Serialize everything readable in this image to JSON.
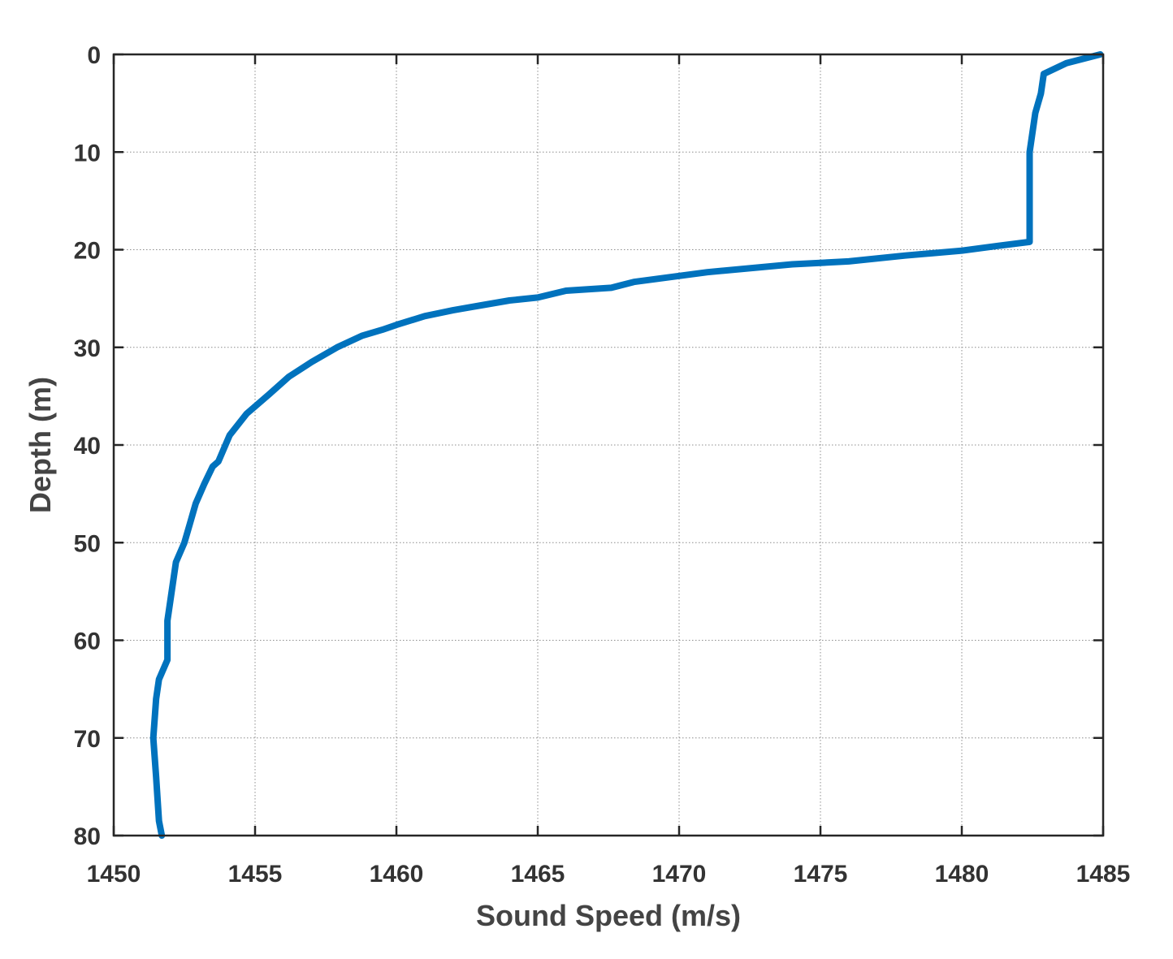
{
  "chart_data": {
    "type": "line",
    "title": "",
    "xlabel": "Sound Speed (m/s)",
    "ylabel": "Depth (m)",
    "xlim": [
      1450,
      1485
    ],
    "ylim": [
      0,
      80
    ],
    "y_reversed": true,
    "grid": true,
    "x_ticks": [
      "1450",
      "1455",
      "1460",
      "1465",
      "1470",
      "1475",
      "1480",
      "1485"
    ],
    "y_ticks": [
      "0",
      "10",
      "20",
      "30",
      "40",
      "50",
      "60",
      "70",
      "80"
    ],
    "series": [
      {
        "name": "",
        "color": "#0072BD",
        "x": [
          1484.9,
          1483.7,
          1482.9,
          1482.8,
          1482.6,
          1482.5,
          1482.4,
          1482.4,
          1482.4,
          1482.4,
          1481.3,
          1480.0,
          1478.0,
          1476.0,
          1474.0,
          1471.0,
          1468.4,
          1467.6,
          1466.0,
          1465.0,
          1464.0,
          1463.0,
          1462.0,
          1461.0,
          1460.0,
          1459.5,
          1458.8,
          1457.9,
          1457.0,
          1456.2,
          1455.5,
          1454.7,
          1454.1,
          1453.7,
          1453.5,
          1453.2,
          1452.9,
          1452.7,
          1452.5,
          1452.2,
          1452.0,
          1451.9,
          1451.9,
          1451.6,
          1451.5,
          1451.4,
          1451.5,
          1451.6,
          1451.7
        ],
        "y": [
          0,
          0.9,
          2.0,
          4.0,
          6.0,
          8.0,
          10.0,
          15.0,
          19.0,
          19.2,
          19.6,
          20.1,
          20.6,
          21.2,
          21.5,
          22.3,
          23.3,
          23.9,
          24.2,
          24.9,
          25.2,
          25.7,
          26.2,
          26.8,
          27.7,
          28.2,
          28.8,
          30.0,
          31.5,
          33.0,
          34.8,
          36.8,
          39.0,
          41.7,
          42.2,
          44.0,
          46.0,
          48.0,
          50.0,
          52.0,
          56.0,
          58.0,
          62.0,
          64.0,
          66.0,
          70.0,
          74.0,
          78.5,
          80.0
        ]
      }
    ]
  }
}
